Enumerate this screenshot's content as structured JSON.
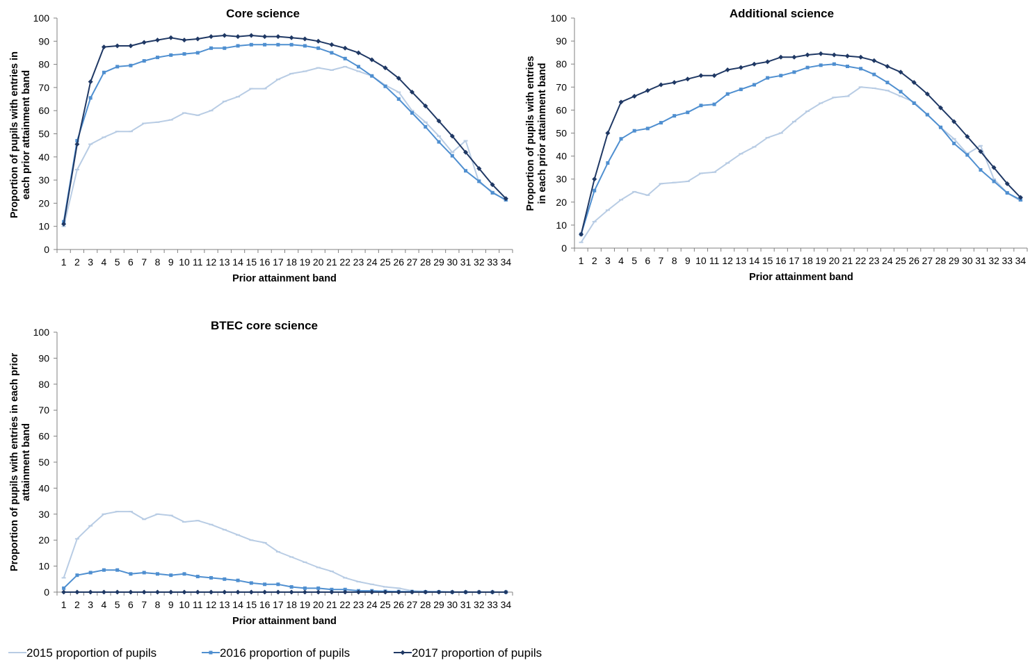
{
  "legend": [
    {
      "label": "2015 proportion of pupils",
      "color": "#b8cce4",
      "marker": "dash"
    },
    {
      "label": "2016 proportion of pupils",
      "color": "#4f8fd0",
      "marker": "square"
    },
    {
      "label": "2017 proportion of pupils",
      "color": "#1f3864",
      "marker": "diamond"
    }
  ],
  "chart_data": [
    {
      "type": "line",
      "title": "Core science",
      "xlabel": "Prior attainment band",
      "ylabel": "Proportion of pupils with entries in each prior attainment band",
      "ylim": [
        0,
        100
      ],
      "yticks": [
        0,
        10,
        20,
        30,
        40,
        50,
        60,
        70,
        80,
        90,
        100
      ],
      "x": [
        1,
        2,
        3,
        4,
        5,
        6,
        7,
        8,
        9,
        10,
        11,
        12,
        13,
        14,
        15,
        16,
        17,
        18,
        19,
        20,
        21,
        22,
        23,
        24,
        25,
        26,
        27,
        28,
        29,
        30,
        31,
        32,
        33,
        34
      ],
      "grid": false,
      "legend_position": "bottom",
      "series": [
        {
          "name": "2015 proportion of pupils",
          "color": "#b8cce4",
          "values": [
            10,
            34.5,
            45.5,
            48.5,
            51,
            51,
            54.5,
            55,
            56,
            59,
            58,
            60,
            64,
            66,
            69.5,
            69.5,
            73.5,
            76,
            77,
            78.5,
            77.5,
            79,
            77,
            75,
            71,
            68,
            60,
            55,
            49,
            42,
            47,
            29,
            25,
            21
          ]
        },
        {
          "name": "2016 proportion of pupils",
          "color": "#4f8fd0",
          "values": [
            12,
            47,
            65.5,
            76.5,
            79,
            79.5,
            81.5,
            83,
            84,
            84.5,
            85,
            87,
            87,
            88,
            88.5,
            88.5,
            88.5,
            88.5,
            88,
            87,
            85,
            82.5,
            79,
            75,
            70.5,
            65,
            59,
            53,
            46.5,
            40.5,
            34,
            29.5,
            24.5,
            21.5
          ]
        },
        {
          "name": "2017 proportion of pupils",
          "color": "#1f3864",
          "values": [
            11,
            45.5,
            72.5,
            87.5,
            88,
            88,
            89.5,
            90.5,
            91.5,
            90.5,
            91,
            92,
            92.5,
            92,
            92.5,
            92,
            92,
            91.5,
            91,
            90,
            88.5,
            87,
            85,
            82,
            78.5,
            74,
            68,
            62,
            55.5,
            49,
            42,
            35,
            28,
            22
          ]
        }
      ]
    },
    {
      "type": "line",
      "title": "Additional science",
      "xlabel": "Prior attainment band",
      "ylabel": "Proportion of pupils with entries in each prior attainment band",
      "ylim": [
        0,
        100
      ],
      "yticks": [
        0,
        10,
        20,
        30,
        40,
        50,
        60,
        70,
        80,
        90,
        100
      ],
      "x": [
        1,
        2,
        3,
        4,
        5,
        6,
        7,
        8,
        9,
        10,
        11,
        12,
        13,
        14,
        15,
        16,
        17,
        18,
        19,
        20,
        21,
        22,
        23,
        24,
        25,
        26,
        27,
        28,
        29,
        30,
        31,
        32,
        33,
        34
      ],
      "grid": false,
      "legend_position": "bottom",
      "series": [
        {
          "name": "2015 proportion of pupils",
          "color": "#b8cce4",
          "values": [
            2.5,
            11.5,
            16.5,
            21,
            24.5,
            23,
            28,
            28.5,
            29,
            32.5,
            33,
            37,
            41,
            44,
            48,
            50,
            55,
            59.5,
            63,
            65.5,
            66,
            70,
            69.5,
            68.5,
            66,
            63.5,
            58,
            52.5,
            47.5,
            41,
            44.5,
            30,
            24,
            20.5
          ]
        },
        {
          "name": "2016 proportion of pupils",
          "color": "#4f8fd0",
          "values": [
            6,
            25,
            37,
            47.5,
            51,
            52,
            54.5,
            57.5,
            59,
            62,
            62.5,
            67,
            69,
            71,
            74,
            75,
            76.5,
            78.5,
            79.5,
            80,
            79,
            78,
            75.5,
            72,
            68,
            63,
            58,
            52.5,
            45.5,
            40.5,
            34,
            29,
            24,
            21
          ]
        },
        {
          "name": "2017 proportion of pupils",
          "color": "#1f3864",
          "values": [
            6,
            30,
            50,
            63.5,
            66,
            68.5,
            71,
            72,
            73.5,
            75,
            75,
            77.5,
            78.5,
            80,
            81,
            83,
            83,
            84,
            84.5,
            84,
            83.5,
            83,
            81.5,
            79,
            76.5,
            72,
            67,
            61,
            55,
            48.5,
            42,
            35,
            28,
            22
          ]
        }
      ]
    },
    {
      "type": "line",
      "title": "BTEC core science",
      "xlabel": "Prior attainment band",
      "ylabel": "Proportion of pupils with entries in each prior attainment band",
      "ylim": [
        0,
        100
      ],
      "yticks": [
        0,
        10,
        20,
        30,
        40,
        50,
        60,
        70,
        80,
        90,
        100
      ],
      "x": [
        1,
        2,
        3,
        4,
        5,
        6,
        7,
        8,
        9,
        10,
        11,
        12,
        13,
        14,
        15,
        16,
        17,
        18,
        19,
        20,
        21,
        22,
        23,
        24,
        25,
        26,
        27,
        28,
        29,
        30,
        31,
        32,
        33,
        34
      ],
      "grid": false,
      "legend_position": "bottom",
      "series": [
        {
          "name": "2015 proportion of pupils",
          "color": "#b8cce4",
          "values": [
            5.5,
            20.5,
            25.5,
            30,
            31,
            31,
            28,
            30,
            29.5,
            27,
            27.5,
            26,
            24,
            22,
            20,
            19,
            15.5,
            13.5,
            11.5,
            9.5,
            8,
            5.5,
            4,
            3,
            2,
            1.5,
            0.5,
            0.3,
            0.2,
            0.1,
            0.1,
            0,
            0,
            0
          ]
        },
        {
          "name": "2016 proportion of pupils",
          "color": "#4f8fd0",
          "values": [
            1.5,
            6.5,
            7.5,
            8.5,
            8.5,
            7,
            7.5,
            7,
            6.5,
            7,
            6,
            5.5,
            5,
            4.5,
            3.5,
            3,
            3,
            2,
            1.5,
            1.5,
            1,
            1,
            0.5,
            0.5,
            0.3,
            0.2,
            0.2,
            0.1,
            0.1,
            0,
            0,
            0,
            0,
            0
          ]
        },
        {
          "name": "2017 proportion of pupils",
          "color": "#1f3864",
          "values": [
            0,
            0,
            0,
            0,
            0,
            0,
            0,
            0,
            0,
            0,
            0,
            0,
            0,
            0,
            0,
            0,
            0,
            0,
            0,
            0,
            0,
            0,
            0,
            0,
            0,
            0,
            0,
            0,
            0,
            0,
            0,
            0,
            0,
            0
          ]
        }
      ]
    }
  ]
}
